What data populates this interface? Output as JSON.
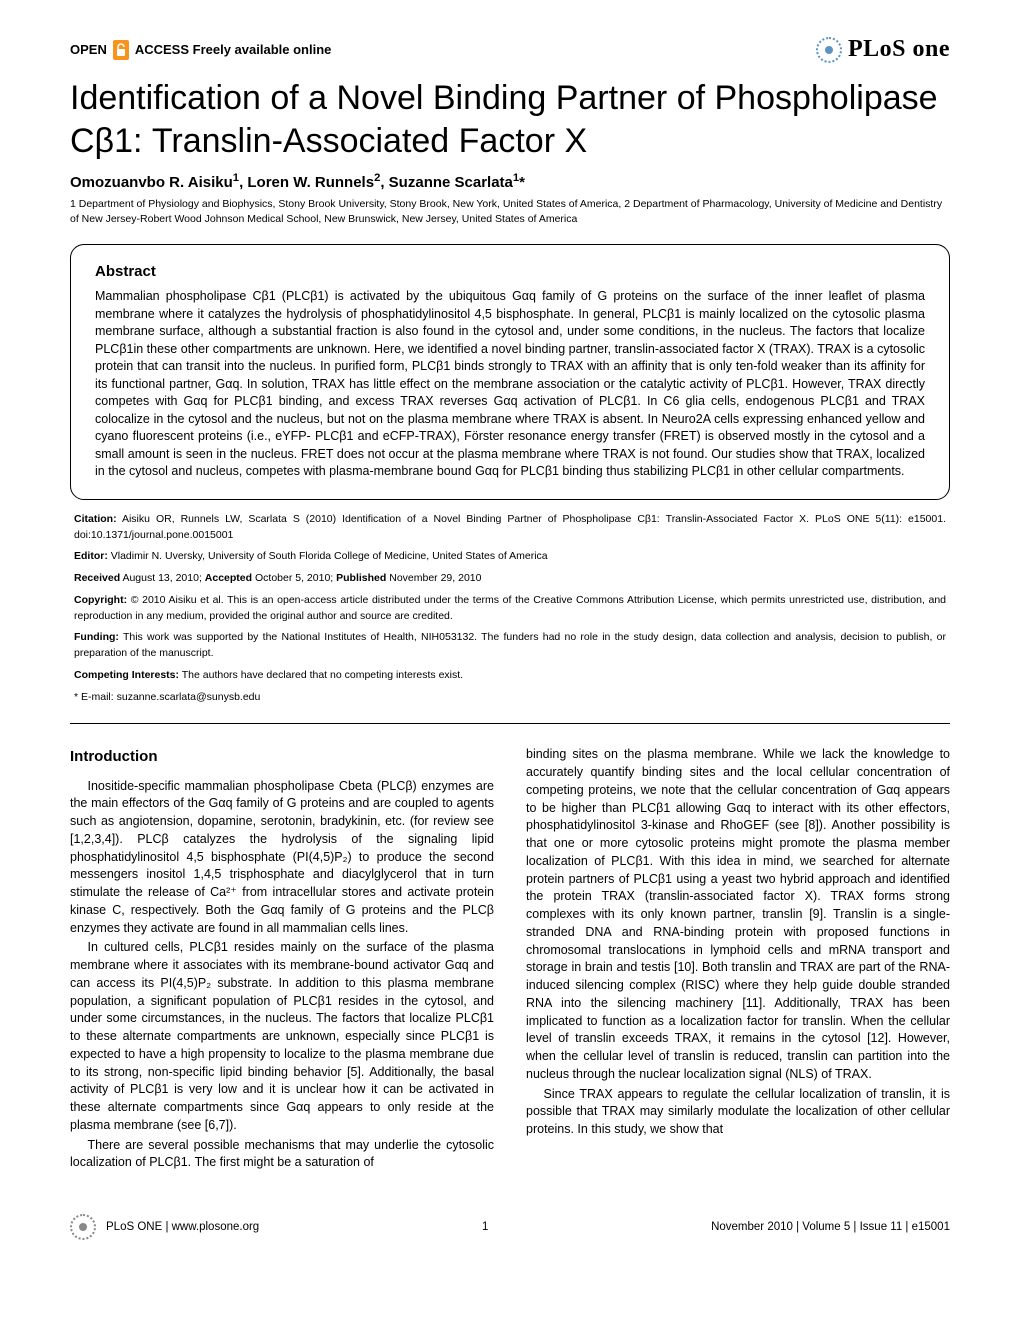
{
  "header": {
    "open_access_prefix": "OPEN",
    "open_access_badge": "",
    "open_access_label": "ACCESS Freely available online",
    "journal_logo_text": "PLoS one"
  },
  "title": "Identification of a Novel Binding Partner of Phospholipase Cβ1: Translin-Associated Factor X",
  "authors_html": "Omozuanvbo R. Aisiku<sup>1</sup>, Loren W. Runnels<sup>2</sup>, Suzanne Scarlata<sup>1</sup>*",
  "affiliations": "1 Department of Physiology and Biophysics, Stony Brook University, Stony Brook, New York, United States of America, 2 Department of Pharmacology, University of Medicine and Dentistry of New Jersey-Robert Wood Johnson Medical School, New Brunswick, New Jersey, United States of America",
  "abstract": {
    "heading": "Abstract",
    "text": "Mammalian phospholipase Cβ1 (PLCβ1) is activated by the ubiquitous Gαq family of G proteins on the surface of the inner leaflet of plasma membrane where it catalyzes the hydrolysis of phosphatidylinositol 4,5 bisphosphate. In general, PLCβ1 is mainly localized on the cytosolic plasma membrane surface, although a substantial fraction is also found in the cytosol and, under some conditions, in the nucleus. The factors that localize PLCβ1in these other compartments are unknown. Here, we identified a novel binding partner, translin-associated factor X (TRAX). TRAX is a cytosolic protein that can transit into the nucleus. In purified form, PLCβ1 binds strongly to TRAX with an affinity that is only ten-fold weaker than its affinity for its functional partner, Gαq. In solution, TRAX has little effect on the membrane association or the catalytic activity of PLCβ1. However, TRAX directly competes with Gαq for PLCβ1 binding, and excess TRAX reverses Gαq activation of PLCβ1. In C6 glia cells, endogenous PLCβ1 and TRAX colocalize in the cytosol and the nucleus, but not on the plasma membrane where TRAX is absent. In Neuro2A cells expressing enhanced yellow and cyano fluorescent proteins (i.e., eYFP- PLCβ1 and eCFP-TRAX), Förster resonance energy transfer (FRET) is observed mostly in the cytosol and a small amount is seen in the nucleus. FRET does not occur at the plasma membrane where TRAX is not found. Our studies show that TRAX, localized in the cytosol and nucleus, competes with plasma-membrane bound Gαq for PLCβ1 binding thus stabilizing PLCβ1 in other cellular compartments."
  },
  "meta": {
    "citation_label": "Citation:",
    "citation": "Aisiku OR, Runnels LW, Scarlata S (2010) Identification of a Novel Binding Partner of Phospholipase Cβ1: Translin-Associated Factor X. PLoS ONE 5(11): e15001. doi:10.1371/journal.pone.0015001",
    "editor_label": "Editor:",
    "editor": "Vladimir N. Uversky, University of South Florida College of Medicine, United States of America",
    "received_label": "Received",
    "received": "August 13, 2010;",
    "accepted_label": "Accepted",
    "accepted": "October 5, 2010;",
    "published_label": "Published",
    "published": "November 29, 2010",
    "copyright_label": "Copyright:",
    "copyright": "© 2010 Aisiku et al. This is an open-access article distributed under the terms of the Creative Commons Attribution License, which permits unrestricted use, distribution, and reproduction in any medium, provided the original author and source are credited.",
    "funding_label": "Funding:",
    "funding": "This work was supported by the National Institutes of Health, NIH053132. The funders had no role in the study design, data collection and analysis, decision to publish, or preparation of the manuscript.",
    "competing_label": "Competing Interests:",
    "competing": "The authors have declared that no competing interests exist.",
    "email_label": "* E-mail:",
    "email": "suzanne.scarlata@sunysb.edu"
  },
  "body": {
    "intro_heading": "Introduction",
    "left_paras": [
      "Inositide-specific mammalian phospholipase Cbeta (PLCβ) enzymes are the main effectors of the Gαq family of G proteins and are coupled to agents such as angiotension, dopamine, serotonin, bradykinin, etc. (for review see [1,2,3,4]). PLCβ catalyzes the hydrolysis of the signaling lipid phosphatidylinositol 4,5 bisphosphate (PI(4,5)P₂) to produce the second messengers inositol 1,4,5 trisphosphate and diacylglycerol that in turn stimulate the release of Ca²⁺ from intracellular stores and activate protein kinase C, respectively. Both the Gαq family of G proteins and the PLCβ enzymes they activate are found in all mammalian cells lines.",
      "In cultured cells, PLCβ1 resides mainly on the surface of the plasma membrane where it associates with its membrane-bound activator Gαq and can access its PI(4,5)P₂ substrate. In addition to this plasma membrane population, a significant population of PLCβ1 resides in the cytosol, and under some circumstances, in the nucleus. The factors that localize PLCβ1 to these alternate compartments are unknown, especially since PLCβ1 is expected to have a high propensity to localize to the plasma membrane due to its strong, non-specific lipid binding behavior [5]. Additionally, the basal activity of PLCβ1 is very low and it is unclear how it can be activated in these alternate compartments since Gαq appears to only reside at the plasma membrane (see [6,7]).",
      "There are several possible mechanisms that may underlie the cytosolic localization of PLCβ1. The first might be a saturation of"
    ],
    "right_paras": [
      "binding sites on the plasma membrane. While we lack the knowledge to accurately quantify binding sites and the local cellular concentration of competing proteins, we note that the cellular concentration of Gαq appears to be higher than PLCβ1 allowing Gαq to interact with its other effectors, phosphatidylinositol 3-kinase and RhoGEF (see [8]). Another possibility is that one or more cytosolic proteins might promote the plasma member localization of PLCβ1. With this idea in mind, we searched for alternate protein partners of PLCβ1 using a yeast two hybrid approach and identified the protein TRAX (translin-associated factor X). TRAX forms strong complexes with its only known partner, translin [9]. Translin is a single-stranded DNA and RNA-binding protein with proposed functions in chromosomal translocations in lymphoid cells and mRNA transport and storage in brain and testis [10]. Both translin and TRAX are part of the RNA-induced silencing complex (RISC) where they help guide double stranded RNA into the silencing machinery [11]. Additionally, TRAX has been implicated to function as a localization factor for translin. When the cellular level of translin exceeds TRAX, it remains in the cytosol [12]. However, when the cellular level of translin is reduced, translin can partition into the nucleus through the nuclear localization signal (NLS) of TRAX.",
      "Since TRAX appears to regulate the cellular localization of translin, it is possible that TRAX may similarly modulate the localization of other cellular proteins. In this study, we show that"
    ]
  },
  "footer": {
    "site": "PLoS ONE | www.plosone.org",
    "page": "1",
    "issue": "November 2010 | Volume 5 | Issue 11 | e15001"
  },
  "colors": {
    "accent_orange": "#f7941e",
    "plos_blue": "#5a93c4",
    "text": "#000000",
    "bg": "#ffffff"
  }
}
